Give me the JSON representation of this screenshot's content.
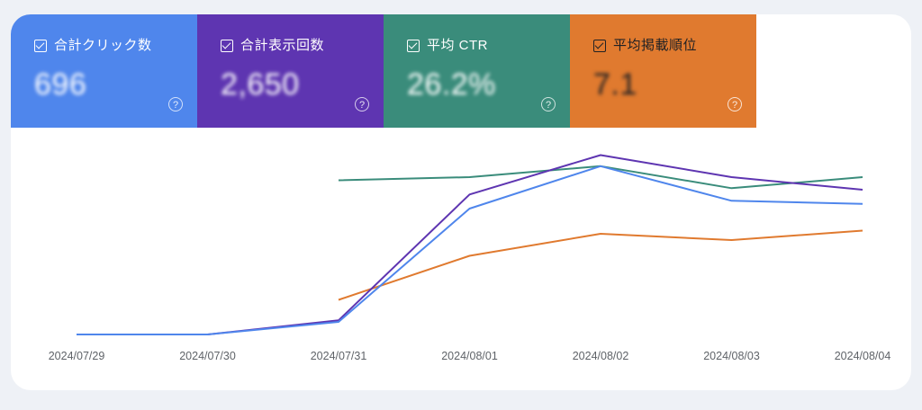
{
  "metrics": [
    {
      "label": "合計クリック数",
      "value": "696",
      "color": "#4f86ec",
      "checked": true
    },
    {
      "label": "合計表示回数",
      "value": "2,650",
      "color": "#5e35b1",
      "checked": true
    },
    {
      "label": "平均 CTR",
      "value": "26.2%",
      "color": "#3a8c7b",
      "checked": true
    },
    {
      "label": "平均掲載順位",
      "value": "7.1",
      "color": "#e07a2f",
      "checked": true
    }
  ],
  "help_glyph": "?",
  "chart_data": {
    "type": "line",
    "x": [
      "2024/07/29",
      "2024/07/30",
      "2024/07/31",
      "2024/08/01",
      "2024/08/02",
      "2024/08/03",
      "2024/08/04"
    ],
    "series": [
      {
        "key": "clicks",
        "color": "#4f86ec",
        "values": [
          0,
          0,
          8,
          80,
          107,
          85,
          83
        ]
      },
      {
        "key": "impressions",
        "color": "#5e35b1",
        "values": [
          0,
          0,
          9,
          89,
          114,
          100,
          92
        ]
      },
      {
        "key": "ctr",
        "color": "#3a8c7b",
        "values": [
          null,
          null,
          98,
          100,
          107,
          93,
          100
        ]
      },
      {
        "key": "position",
        "color": "#e07a2f",
        "values": [
          null,
          null,
          22,
          50,
          64,
          60,
          66
        ]
      }
    ],
    "ylim": [
      0,
      120
    ],
    "grid": false,
    "legend": "none"
  }
}
